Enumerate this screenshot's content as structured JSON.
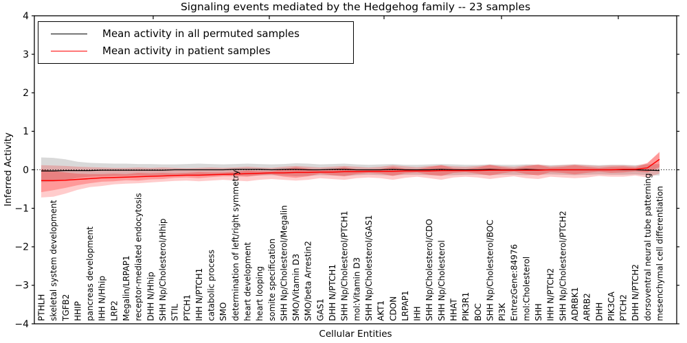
{
  "chart_data": {
    "type": "line",
    "title": "Signaling events mediated by the Hedgehog family -- 23 samples",
    "xlabel": "Cellular Entities",
    "ylabel": "Inferred Activity",
    "ylim": [
      -4,
      4
    ],
    "y_ticks": [
      -4,
      -3,
      -2,
      -1,
      0,
      1,
      2,
      3,
      4
    ],
    "grid": false,
    "legend_position": "upper left",
    "zero_line": {
      "y": 0,
      "style": "dotted",
      "color": "#000000"
    },
    "categories": [
      "PTHLH",
      "skeletal system development",
      "TGFB2",
      "HHIP",
      "pancreas development",
      "IHH N/Hhip",
      "LRP2",
      "Megalin/LRPAP1",
      "receptor-mediated endocytosis",
      "DHH N/Hhip",
      "SHH Np/Cholesterol/Hhip",
      "STIL",
      "PTCH1",
      "IHH N/PTCH1",
      "catabolic process",
      "SMO",
      "determination of left/right symmetry",
      "heart development",
      "heart looping",
      "somite specification",
      "SHH Np/Cholesterol/Megalin",
      "SMO/Vitamin D3",
      "SMO/beta Arrestin2",
      "GAS1",
      "DHH N/PTCH1",
      "SHH Np/Cholesterol/PTCH1",
      "mol:Vitamin D3",
      "SHH Np/Cholesterol/GAS1",
      "AKT1",
      "CDON",
      "LRPAP1",
      "IHH",
      "SHH Np/Cholesterol/CDO",
      "SHH Np/Cholesterol",
      "HHAT",
      "PIK3R1",
      "BOC",
      "SHH Np/Cholesterol/BOC",
      "PI3K",
      "EntrezGene:84976",
      "mol:Cholesterol",
      "SHH",
      "IHH N/PTCH2",
      "SHH Np/Cholesterol/PTCH2",
      "ADRBK1",
      "ARRB2",
      "DHH",
      "PIK3CA",
      "PTCH2",
      "DHH N/PTCH2",
      "dorsoventral neural tube patterning",
      "mesenchymal cell differentiation"
    ],
    "series": [
      {
        "name": "Mean activity in all permuted samples",
        "color": "#000000",
        "values": [
          -0.03,
          -0.03,
          -0.02,
          -0.02,
          -0.02,
          -0.01,
          -0.01,
          -0.01,
          -0.01,
          -0.01,
          -0.01,
          0,
          0,
          0,
          0,
          0,
          0.01,
          0.01,
          0.01,
          0,
          0.01,
          0.01,
          0,
          0,
          0.01,
          0.01,
          0,
          0,
          0,
          0.01,
          0,
          0,
          0,
          0.01,
          0,
          0,
          0,
          0.01,
          0,
          0,
          0.01,
          0,
          0,
          0,
          0,
          0,
          0,
          0,
          0,
          0,
          -0.01,
          -0.02
        ]
      },
      {
        "name": "Mean activity in patient samples",
        "color": "#ff0000",
        "values": [
          -0.28,
          -0.28,
          -0.27,
          -0.25,
          -0.23,
          -0.21,
          -0.2,
          -0.19,
          -0.18,
          -0.17,
          -0.16,
          -0.15,
          -0.14,
          -0.14,
          -0.13,
          -0.12,
          -0.11,
          -0.1,
          -0.09,
          -0.08,
          -0.08,
          -0.07,
          -0.07,
          -0.06,
          -0.06,
          -0.05,
          -0.05,
          -0.04,
          -0.04,
          -0.04,
          -0.03,
          -0.03,
          -0.03,
          -0.02,
          -0.02,
          -0.02,
          -0.02,
          -0.01,
          -0.01,
          -0.01,
          -0.01,
          -0.01,
          0,
          0,
          0,
          0,
          0,
          0,
          0.01,
          0.01,
          0.05,
          0.27
        ]
      }
    ],
    "bands": [
      {
        "name": "permuted-std-band",
        "color": "#808080",
        "opacity": 0.3,
        "upper": [
          0.32,
          0.31,
          0.27,
          0.21,
          0.18,
          0.17,
          0.16,
          0.16,
          0.15,
          0.15,
          0.14,
          0.14,
          0.15,
          0.16,
          0.15,
          0.14,
          0.15,
          0.16,
          0.15,
          0.14,
          0.15,
          0.17,
          0.16,
          0.14,
          0.15,
          0.16,
          0.14,
          0.13,
          0.14,
          0.15,
          0.13,
          0.13,
          0.14,
          0.15,
          0.14,
          0.13,
          0.13,
          0.14,
          0.13,
          0.13,
          0.14,
          0.13,
          0.12,
          0.13,
          0.14,
          0.13,
          0.12,
          0.13,
          0.13,
          0.12,
          0.14,
          0.15
        ],
        "lower": [
          -0.32,
          -0.31,
          -0.27,
          -0.21,
          -0.18,
          -0.17,
          -0.16,
          -0.16,
          -0.15,
          -0.15,
          -0.14,
          -0.14,
          -0.15,
          -0.16,
          -0.15,
          -0.14,
          -0.15,
          -0.16,
          -0.15,
          -0.14,
          -0.15,
          -0.17,
          -0.16,
          -0.14,
          -0.15,
          -0.16,
          -0.14,
          -0.13,
          -0.14,
          -0.15,
          -0.13,
          -0.13,
          -0.14,
          -0.15,
          -0.14,
          -0.13,
          -0.13,
          -0.14,
          -0.13,
          -0.13,
          -0.14,
          -0.13,
          -0.12,
          -0.13,
          -0.14,
          -0.13,
          -0.12,
          -0.13,
          -0.13,
          -0.12,
          -0.14,
          -0.15
        ]
      },
      {
        "name": "patient-std-band-outer",
        "color": "#ff0000",
        "opacity": 0.2,
        "upper": [
          0.12,
          0.11,
          0.1,
          0.08,
          0.07,
          0.06,
          0.05,
          0.05,
          0.06,
          0.05,
          0.06,
          0.05,
          0.04,
          0.05,
          0.06,
          0.05,
          0.06,
          0.08,
          0.06,
          0.05,
          0.08,
          0.1,
          0.08,
          0.06,
          0.08,
          0.1,
          0.08,
          0.06,
          0.08,
          0.12,
          0.09,
          0.07,
          0.1,
          0.12,
          0.09,
          0.08,
          0.1,
          0.13,
          0.1,
          0.08,
          0.12,
          0.14,
          0.1,
          0.12,
          0.14,
          0.12,
          0.1,
          0.12,
          0.12,
          0.1,
          0.18,
          0.45
        ],
        "lower": [
          -0.72,
          -0.7,
          -0.62,
          -0.52,
          -0.45,
          -0.42,
          -0.38,
          -0.36,
          -0.35,
          -0.33,
          -0.31,
          -0.29,
          -0.28,
          -0.3,
          -0.28,
          -0.26,
          -0.28,
          -0.3,
          -0.26,
          -0.24,
          -0.26,
          -0.28,
          -0.26,
          -0.22,
          -0.24,
          -0.26,
          -0.22,
          -0.2,
          -0.22,
          -0.26,
          -0.21,
          -0.18,
          -0.22,
          -0.26,
          -0.2,
          -0.18,
          -0.2,
          -0.24,
          -0.2,
          -0.17,
          -0.22,
          -0.24,
          -0.18,
          -0.2,
          -0.22,
          -0.2,
          -0.16,
          -0.18,
          -0.18,
          -0.15,
          -0.2,
          -0.1
        ]
      },
      {
        "name": "patient-std-band-inner",
        "color": "#ff0000",
        "opacity": 0.25,
        "upper": [
          0.02,
          -0.03,
          -0.07,
          -0.1,
          -0.11,
          -0.11,
          -0.1,
          -0.11,
          -0.08,
          -0.09,
          -0.08,
          -0.09,
          -0.08,
          -0.06,
          -0.07,
          -0.07,
          -0.05,
          -0.02,
          -0.04,
          -0.04,
          0.02,
          0.07,
          0.03,
          -0.02,
          0.02,
          0.07,
          0.01,
          0,
          0.02,
          0.08,
          0.03,
          0.01,
          0.07,
          0.12,
          0.04,
          0.02,
          0.06,
          0.13,
          0.07,
          0.03,
          0.09,
          0.13,
          0.06,
          0.08,
          0.12,
          0.08,
          0.05,
          0.08,
          0.09,
          0.06,
          0.17,
          0.47
        ],
        "lower": [
          -0.58,
          -0.53,
          -0.47,
          -0.4,
          -0.35,
          -0.31,
          -0.3,
          -0.27,
          -0.28,
          -0.25,
          -0.24,
          -0.21,
          -0.2,
          -0.22,
          -0.19,
          -0.17,
          -0.17,
          -0.18,
          -0.14,
          -0.12,
          -0.18,
          -0.21,
          -0.17,
          -0.1,
          -0.14,
          -0.17,
          -0.11,
          -0.08,
          -0.1,
          -0.16,
          -0.09,
          -0.07,
          -0.13,
          -0.16,
          -0.08,
          -0.06,
          -0.1,
          -0.15,
          -0.09,
          -0.05,
          -0.11,
          -0.15,
          -0.06,
          -0.08,
          -0.12,
          -0.08,
          -0.05,
          -0.08,
          -0.07,
          -0.04,
          -0.07,
          0.07
        ]
      }
    ]
  }
}
